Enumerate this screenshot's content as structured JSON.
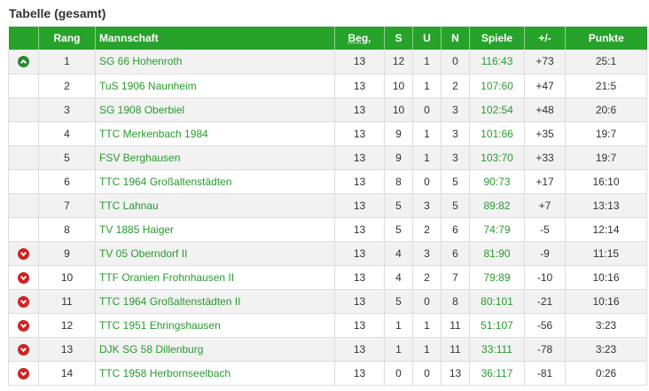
{
  "title": "Tabelle (gesamt)",
  "headers": {
    "trend": "",
    "rank": "Rang",
    "team": "Mannschaft",
    "played": "Beg.",
    "won": "S",
    "draw": "U",
    "lost": "N",
    "games": "Spiele",
    "diff": "+/-",
    "points": "Punkte"
  },
  "rows": [
    {
      "trend": "up",
      "rank": "1",
      "team": "SG 66 Hohenroth",
      "played": "13",
      "won": "12",
      "draw": "1",
      "lost": "0",
      "games": "116:43",
      "diff": "+73",
      "points": "25:1"
    },
    {
      "trend": "",
      "rank": "2",
      "team": "TuS 1906 Naunheim",
      "played": "13",
      "won": "10",
      "draw": "1",
      "lost": "2",
      "games": "107:60",
      "diff": "+47",
      "points": "21:5"
    },
    {
      "trend": "",
      "rank": "3",
      "team": "SG 1908 Oberbiel",
      "played": "13",
      "won": "10",
      "draw": "0",
      "lost": "3",
      "games": "102:54",
      "diff": "+48",
      "points": "20:6"
    },
    {
      "trend": "",
      "rank": "4",
      "team": "TTC Merkenbach 1984",
      "played": "13",
      "won": "9",
      "draw": "1",
      "lost": "3",
      "games": "101:66",
      "diff": "+35",
      "points": "19:7"
    },
    {
      "trend": "",
      "rank": "5",
      "team": "FSV Berghausen",
      "played": "13",
      "won": "9",
      "draw": "1",
      "lost": "3",
      "games": "103:70",
      "diff": "+33",
      "points": "19:7"
    },
    {
      "trend": "",
      "rank": "6",
      "team": "TTC 1964 Großaltenstädten",
      "played": "13",
      "won": "8",
      "draw": "0",
      "lost": "5",
      "games": "90:73",
      "diff": "+17",
      "points": "16:10"
    },
    {
      "trend": "",
      "rank": "7",
      "team": "TTC Lahnau",
      "played": "13",
      "won": "5",
      "draw": "3",
      "lost": "5",
      "games": "89:82",
      "diff": "+7",
      "points": "13:13"
    },
    {
      "trend": "",
      "rank": "8",
      "team": "TV 1885 Haiger",
      "played": "13",
      "won": "5",
      "draw": "2",
      "lost": "6",
      "games": "74:79",
      "diff": "-5",
      "points": "12:14"
    },
    {
      "trend": "down",
      "rank": "9",
      "team": "TV 05 Oberndorf II",
      "played": "13",
      "won": "4",
      "draw": "3",
      "lost": "6",
      "games": "81:90",
      "diff": "-9",
      "points": "11:15"
    },
    {
      "trend": "down",
      "rank": "10",
      "team": "TTF Oranien Frohnhausen II",
      "played": "13",
      "won": "4",
      "draw": "2",
      "lost": "7",
      "games": "79:89",
      "diff": "-10",
      "points": "10:16"
    },
    {
      "trend": "down",
      "rank": "11",
      "team": "TTC 1964 Großaltenstädten II",
      "played": "13",
      "won": "5",
      "draw": "0",
      "lost": "8",
      "games": "80:101",
      "diff": "-21",
      "points": "10:16"
    },
    {
      "trend": "down",
      "rank": "12",
      "team": "TTC 1951 Ehringshausen",
      "played": "13",
      "won": "1",
      "draw": "1",
      "lost": "11",
      "games": "51:107",
      "diff": "-56",
      "points": "3:23"
    },
    {
      "trend": "down",
      "rank": "13",
      "team": "DJK SG 58 Dillenburg",
      "played": "13",
      "won": "1",
      "draw": "1",
      "lost": "11",
      "games": "33:111",
      "diff": "-78",
      "points": "3:23"
    },
    {
      "trend": "down",
      "rank": "14",
      "team": "TTC 1958 Herbornseelbach",
      "played": "13",
      "won": "0",
      "draw": "0",
      "lost": "13",
      "games": "36:117",
      "diff": "-81",
      "points": "0:26"
    }
  ]
}
